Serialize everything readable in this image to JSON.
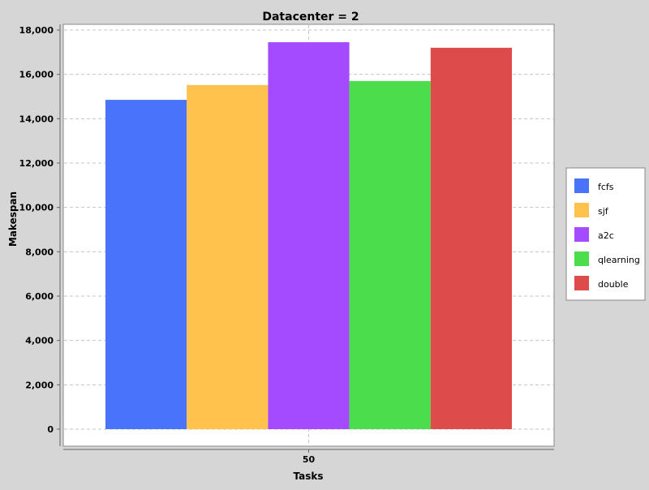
{
  "chart_data": {
    "type": "bar",
    "title": "Datacenter = 2",
    "xlabel": "Tasks",
    "ylabel": "Makespan",
    "categories": [
      "50"
    ],
    "series": [
      {
        "name": "fcfs",
        "values": [
          14850
        ],
        "color": "#4a73fb"
      },
      {
        "name": "sjf",
        "values": [
          15520
        ],
        "color": "#ffc24c"
      },
      {
        "name": "a2c",
        "values": [
          17450
        ],
        "color": "#a54bff"
      },
      {
        "name": "qlearning",
        "values": [
          15700
        ],
        "color": "#4bdd4b"
      },
      {
        "name": "double",
        "values": [
          17200
        ],
        "color": "#dd4b4b"
      }
    ],
    "ylim": [
      0,
      18000
    ],
    "yticks": [
      0,
      2000,
      4000,
      6000,
      8000,
      10000,
      12000,
      14000,
      16000,
      18000
    ],
    "ytick_labels": [
      "0",
      "2,000",
      "4,000",
      "6,000",
      "8,000",
      "10,000",
      "12,000",
      "14,000",
      "16,000",
      "18,000"
    ],
    "grid": true,
    "legend_position": "right"
  }
}
